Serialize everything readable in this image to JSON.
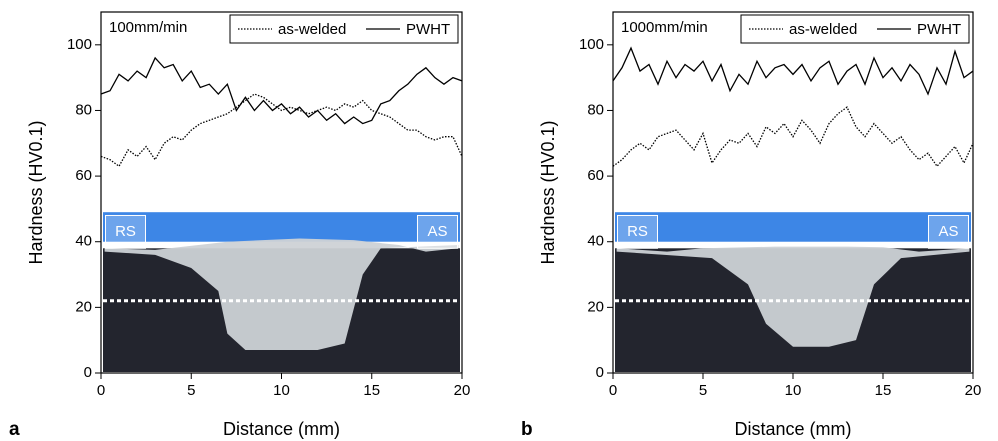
{
  "chart_data": [
    {
      "type": "line",
      "panel_label": "a",
      "annotation": "100mm/min",
      "xlabel": "Distance (mm)",
      "ylabel": "Hardness (HV0.1)",
      "photo_labels": [
        "RS",
        "AS"
      ],
      "legend": "upper right",
      "x": [
        0,
        0.5,
        1,
        1.5,
        2,
        2.5,
        3,
        3.5,
        4,
        4.5,
        5,
        5.5,
        6,
        6.5,
        7,
        7.5,
        8,
        8.5,
        9,
        9.5,
        10,
        10.5,
        11,
        11.5,
        12,
        12.5,
        13,
        13.5,
        14,
        14.5,
        15,
        15.5,
        16,
        16.5,
        17,
        17.5,
        18,
        18.5,
        19,
        19.5,
        20
      ],
      "series": [
        {
          "name": "as-welded",
          "color": "#000000",
          "linestyle": "dotted",
          "values": [
            66,
            65,
            63,
            68,
            66,
            69,
            65,
            70,
            72,
            71,
            74,
            76,
            77,
            78,
            79,
            81,
            83,
            85,
            84,
            82,
            80,
            81,
            80,
            79,
            80,
            81,
            80,
            82,
            81,
            83,
            80,
            79,
            78,
            76,
            74,
            74,
            72,
            71,
            72,
            72,
            66
          ]
        },
        {
          "name": "PWHT",
          "color": "#000000",
          "linestyle": "solid",
          "values": [
            85,
            86,
            91,
            89,
            92,
            90,
            96,
            93,
            94,
            89,
            92,
            87,
            88,
            85,
            88,
            80,
            84,
            80,
            83,
            80,
            82,
            79,
            81,
            78,
            80,
            77,
            79,
            76,
            78,
            76,
            77,
            82,
            83,
            86,
            88,
            91,
            93,
            90,
            88,
            90,
            89
          ]
        }
      ],
      "xlim": [
        0,
        20
      ],
      "xticks": [
        0,
        5,
        10,
        15,
        20
      ],
      "ylim": [
        0,
        110
      ],
      "yticks": [
        0,
        20,
        40,
        60,
        80,
        100
      ]
    },
    {
      "type": "line",
      "panel_label": "b",
      "annotation": "1000mm/min",
      "xlabel": "Distance (mm)",
      "ylabel": "Hardness (HV0.1)",
      "photo_labels": [
        "RS",
        "AS"
      ],
      "legend": "upper right",
      "x": [
        0,
        0.5,
        1,
        1.5,
        2,
        2.5,
        3,
        3.5,
        4,
        4.5,
        5,
        5.5,
        6,
        6.5,
        7,
        7.5,
        8,
        8.5,
        9,
        9.5,
        10,
        10.5,
        11,
        11.5,
        12,
        12.5,
        13,
        13.5,
        14,
        14.5,
        15,
        15.5,
        16,
        16.5,
        17,
        17.5,
        18,
        18.5,
        19,
        19.5,
        20
      ],
      "series": [
        {
          "name": "as-welded",
          "color": "#000000",
          "linestyle": "dotted",
          "values": [
            63,
            65,
            68,
            70,
            68,
            72,
            73,
            74,
            71,
            68,
            73,
            64,
            68,
            71,
            70,
            73,
            69,
            75,
            73,
            76,
            72,
            77,
            74,
            70,
            76,
            79,
            81,
            75,
            72,
            76,
            73,
            70,
            72,
            68,
            65,
            67,
            63,
            66,
            69,
            64,
            70
          ]
        },
        {
          "name": "PWHT",
          "color": "#000000",
          "linestyle": "solid",
          "values": [
            89,
            93,
            99,
            92,
            94,
            88,
            95,
            90,
            94,
            92,
            95,
            89,
            94,
            86,
            91,
            88,
            95,
            90,
            93,
            94,
            91,
            94,
            89,
            93,
            95,
            88,
            92,
            94,
            88,
            96,
            90,
            93,
            89,
            94,
            91,
            85,
            93,
            88,
            98,
            90,
            92
          ]
        }
      ],
      "xlim": [
        0,
        20
      ],
      "xticks": [
        0,
        5,
        10,
        15,
        20
      ],
      "ylim": [
        0,
        110
      ],
      "yticks": [
        0,
        20,
        40,
        60,
        80,
        100
      ]
    }
  ]
}
